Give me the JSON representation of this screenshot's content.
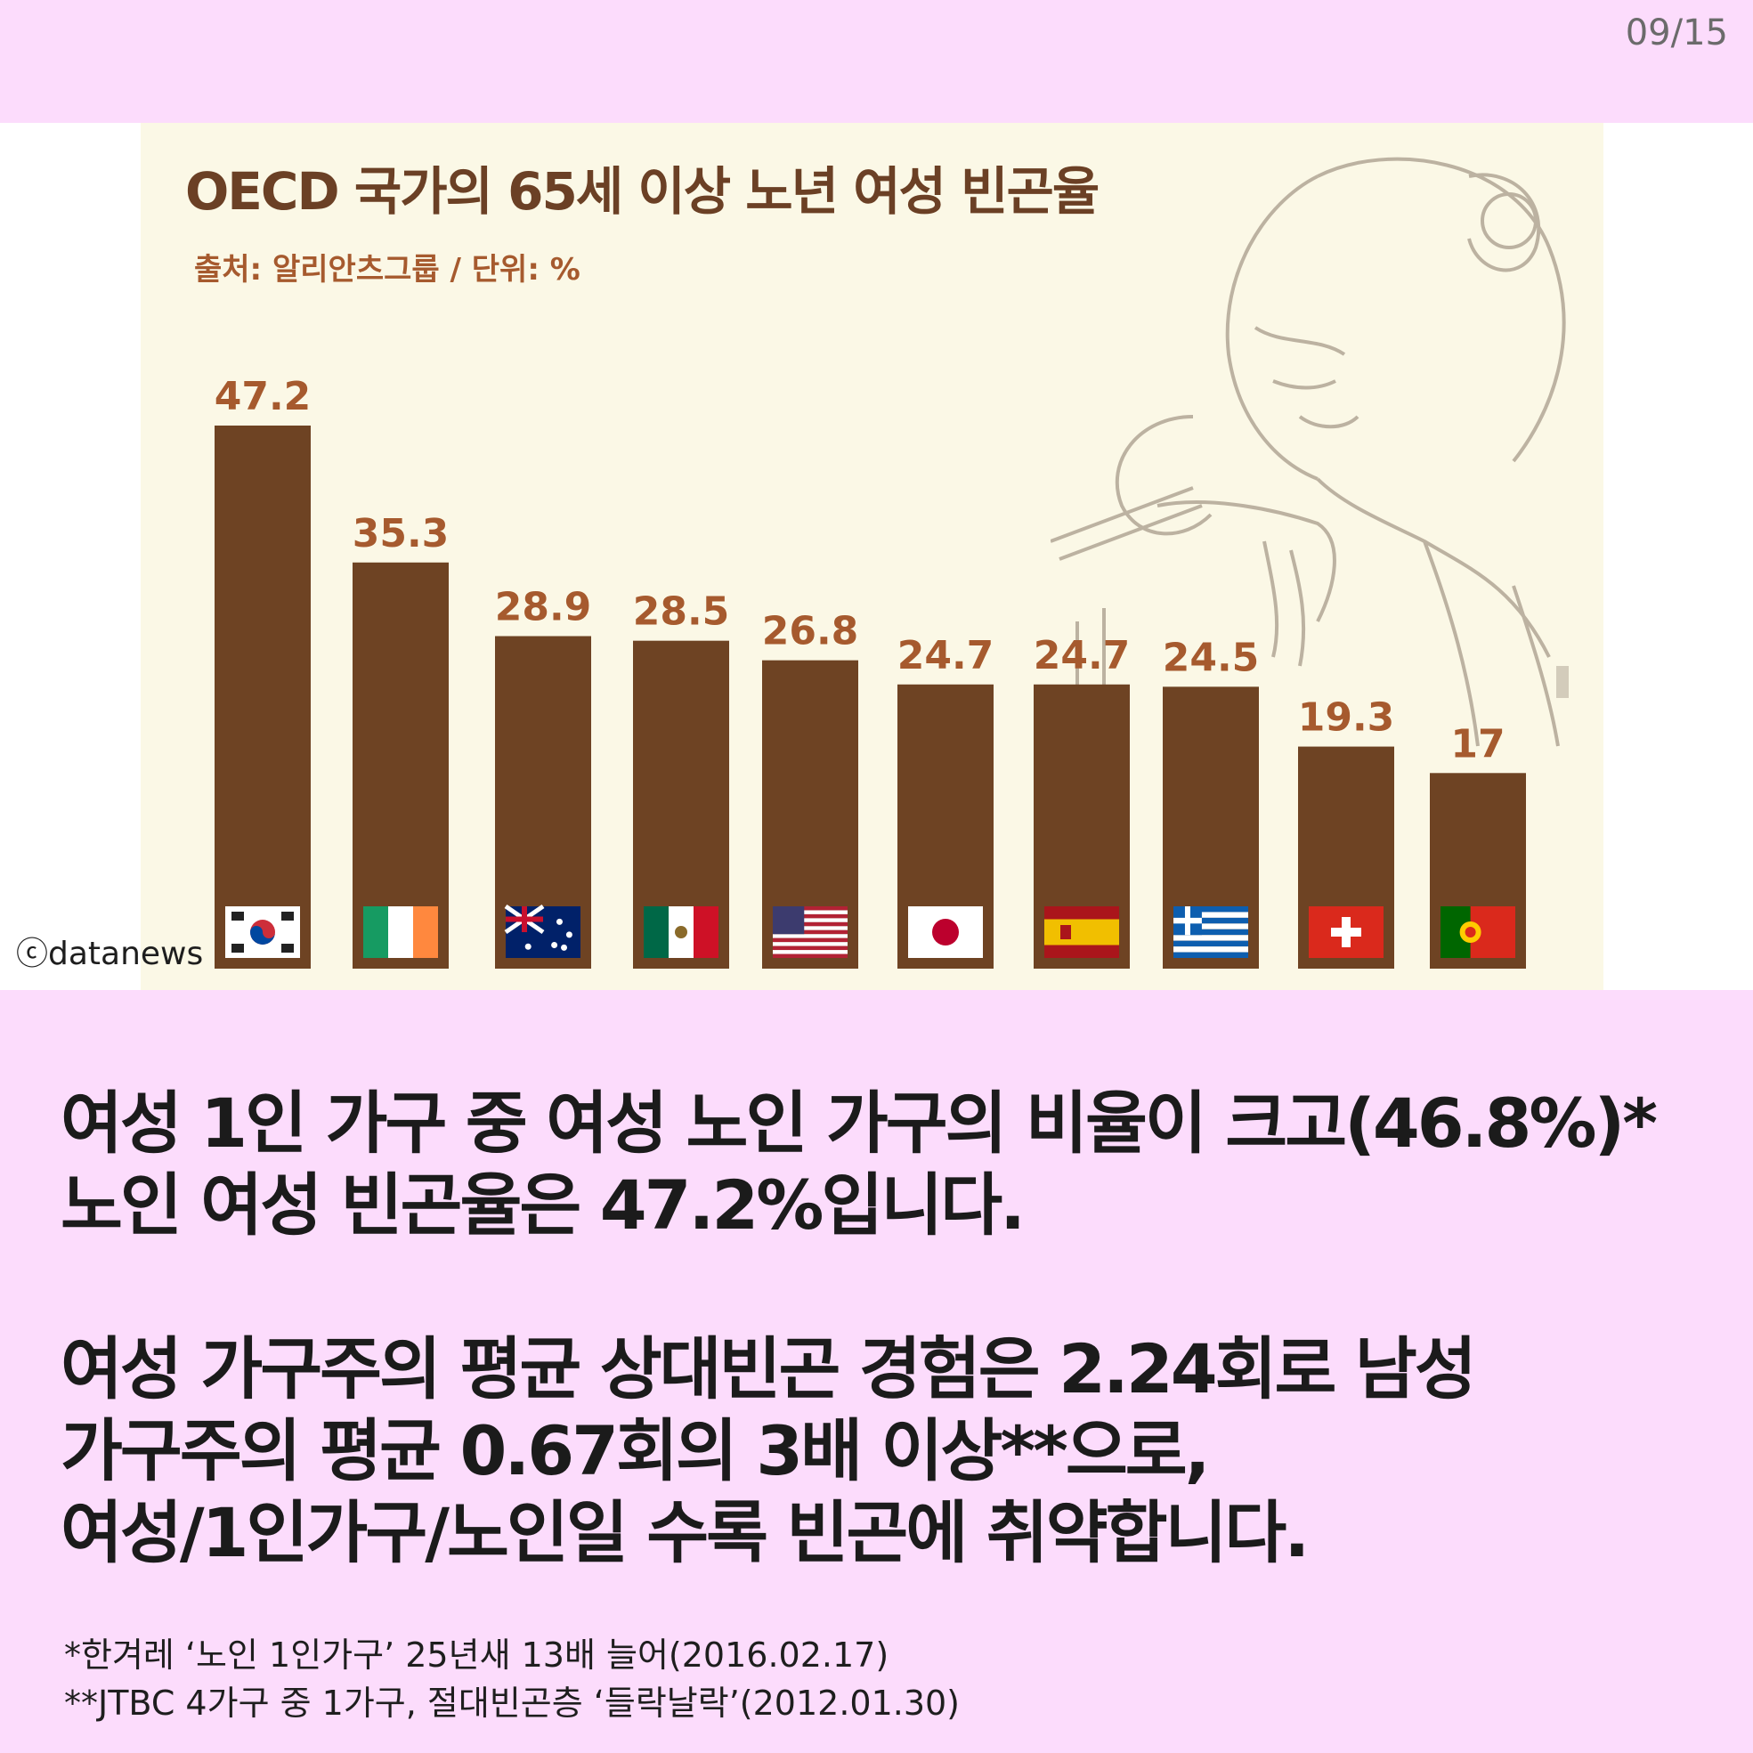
{
  "page_indicator": "09/15",
  "credit": "ⓒdatanews",
  "chart_data": {
    "type": "bar",
    "title": "OECD 국가의 65세 이상 노년 여성 빈곤율",
    "subtitle": "출처: 알리안츠그룹 / 단위: %",
    "categories": [
      "korea-flag",
      "ireland-flag",
      "australia-flag",
      "mexico-flag",
      "usa-flag",
      "japan-flag",
      "spain-flag",
      "greece-flag",
      "switzerland-flag",
      "portugal-flag"
    ],
    "values": [
      47.2,
      35.3,
      28.9,
      28.5,
      26.8,
      24.7,
      24.7,
      24.5,
      19.3,
      17
    ],
    "value_labels": [
      "47.2",
      "35.3",
      "28.9",
      "28.5",
      "26.8",
      "24.7",
      "24.7",
      "24.5",
      "19.3",
      "17"
    ],
    "ylim": [
      0,
      47.2
    ],
    "grid": false,
    "bar_color": "#6e4323",
    "label_color": "#a65a2e"
  },
  "body": {
    "paragraph1": [
      "여성 1인 가구 중 여성 노인 가구의 비율이 크고(46.8%)*",
      "노인 여성 빈곤율은 47.2%입니다."
    ],
    "paragraph2": [
      "여성 가구주의 평균 상대빈곤 경험은 2.24회로 남성",
      "가구주의 평균 0.67회의 3배 이상**으로,",
      "여성/1인가구/노인일 수록 빈곤에 취약합니다."
    ]
  },
  "footnotes": [
    "*한겨레 ‘노인 1인가구’ 25년새 13배 늘어(2016.02.17)",
    "**JTBC 4가구 중 1가구, 절대빈곤층 ‘들락날락’(2012.01.30)"
  ],
  "colors": {
    "page_background": "#fcdcfc",
    "panel_background": "#fbf8e6",
    "title": "#6b4025"
  }
}
